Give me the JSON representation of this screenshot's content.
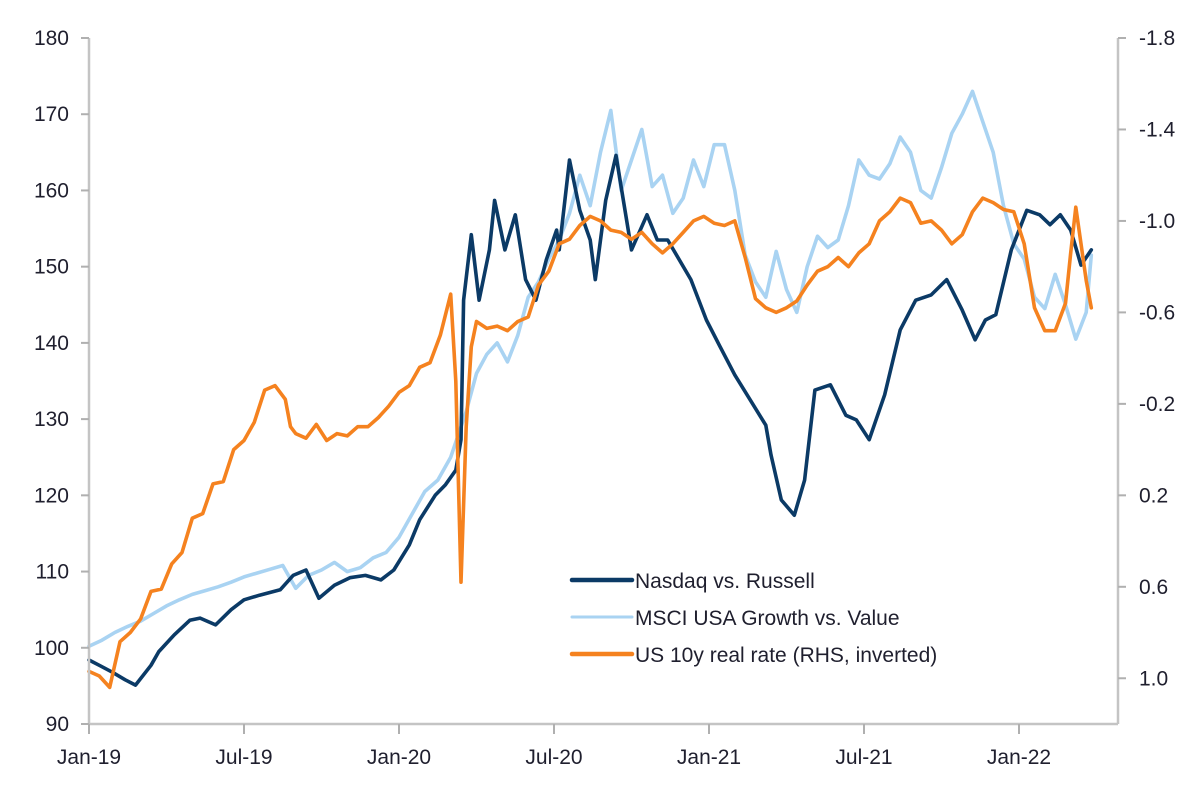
{
  "chart_data": {
    "type": "line",
    "title": "",
    "xlabel": "",
    "ylabel": "",
    "y2label": "",
    "grid": false,
    "legend_position": "bottom-right",
    "x_range": [
      "2019-01",
      "2022-04"
    ],
    "x_ticks": [
      "Jan-19",
      "Jul-19",
      "Jan-20",
      "Jul-20",
      "Jan-21",
      "Jul-21",
      "Jan-22"
    ],
    "x_tick_months": [
      0,
      6,
      12,
      18,
      24,
      30,
      36
    ],
    "x_end_month": 38.8,
    "ylim": [
      90,
      180
    ],
    "y_ticks": [
      90,
      100,
      110,
      120,
      130,
      140,
      150,
      160,
      170,
      180
    ],
    "y2lim": [
      1.2,
      -1.8
    ],
    "y2_inverted": true,
    "y2_ticks": [
      1.0,
      0.6,
      0.2,
      -0.2,
      -0.6,
      -1.0,
      -1.4,
      -1.8
    ],
    "y2_tick_labels": [
      "1.0",
      "0.6",
      "0.2",
      "-0.2",
      "-0.6",
      "-1.0",
      "-1.4",
      "-1.8"
    ],
    "series": [
      {
        "name": "Nasdaq vs. Russell",
        "axis": "left",
        "color": "#0b3a66",
        "x_months": [
          0,
          0.4,
          0.9,
          1.4,
          1.8,
          2.4,
          2.7,
          3.3,
          3.9,
          4.3,
          4.9,
          5.5,
          6.0,
          6.6,
          7.4,
          7.9,
          8.4,
          8.9,
          9.5,
          10.1,
          10.7,
          11.3,
          11.8,
          12.4,
          12.8,
          13.4,
          13.8,
          14.2,
          14.4,
          14.5,
          14.8,
          15.1,
          15.5,
          15.7,
          16.1,
          16.5,
          16.9,
          17.3,
          17.7,
          18.1,
          18.2,
          18.6,
          19.0,
          19.4,
          19.6,
          20.0,
          20.4,
          21.0,
          21.6,
          22.0,
          22.4,
          23.3,
          23.9,
          24.4,
          25.0,
          25.6,
          26.2,
          26.4,
          26.8,
          27.3,
          27.7,
          28.1,
          28.7,
          29.3,
          29.7,
          30.2,
          30.8,
          31.4,
          32.0,
          32.6,
          33.2,
          33.8,
          34.3,
          34.7,
          35.1,
          35.7,
          36.3,
          36.8,
          37.2,
          37.6,
          38.0,
          38.4,
          38.8
        ],
        "values": [
          98.4,
          97.7,
          96.8,
          95.8,
          95.1,
          97.7,
          99.5,
          101.7,
          103.6,
          103.9,
          103.0,
          105.0,
          106.3,
          106.9,
          107.6,
          109.5,
          110.2,
          106.5,
          108.2,
          109.2,
          109.5,
          108.9,
          110.2,
          113.5,
          116.8,
          120.0,
          121.4,
          123.3,
          127.3,
          145.6,
          154.2,
          145.6,
          152.2,
          158.7,
          152.2,
          156.8,
          148.3,
          145.6,
          150.9,
          154.8,
          152.2,
          164.0,
          157.4,
          153.5,
          148.3,
          158.7,
          164.6,
          152.2,
          156.8,
          153.5,
          153.5,
          148.3,
          143.0,
          139.7,
          135.8,
          132.5,
          129.2,
          125.3,
          119.4,
          117.4,
          122.0,
          133.8,
          134.5,
          130.5,
          129.9,
          127.3,
          133.2,
          141.7,
          145.6,
          146.3,
          148.3,
          144.3,
          140.4,
          143.0,
          143.7,
          152.2,
          157.4,
          156.8,
          155.5,
          156.8,
          154.8,
          150.2,
          152.2,
          147.0,
          145.6
        ]
      },
      {
        "name": "MSCI USA Growth vs. Value",
        "axis": "left",
        "color": "#a9d3f2",
        "x_months": [
          0,
          0.5,
          1.0,
          1.5,
          2.0,
          2.5,
          3.0,
          3.5,
          4.0,
          4.5,
          5.0,
          5.5,
          6.0,
          6.5,
          7.0,
          7.5,
          8.0,
          8.5,
          9.0,
          9.5,
          10.0,
          10.5,
          11.0,
          11.5,
          12.0,
          12.5,
          13.0,
          13.5,
          14.0,
          14.3,
          14.6,
          15.0,
          15.4,
          15.8,
          16.2,
          16.6,
          17.0,
          17.4,
          17.8,
          18.2,
          18.6,
          19.0,
          19.4,
          19.8,
          20.2,
          20.6,
          21.0,
          21.4,
          21.8,
          22.2,
          22.6,
          23.0,
          23.4,
          23.8,
          24.2,
          24.6,
          25.0,
          25.4,
          25.8,
          26.2,
          26.6,
          27.0,
          27.4,
          27.8,
          28.2,
          28.6,
          29.0,
          29.4,
          29.8,
          30.2,
          30.6,
          31.0,
          31.4,
          31.8,
          32.2,
          32.6,
          33.0,
          33.4,
          33.8,
          34.2,
          34.6,
          35.0,
          35.4,
          35.8,
          36.2,
          36.6,
          37.0,
          37.4,
          37.8,
          38.2,
          38.6,
          38.8
        ],
        "values": [
          100.2,
          101.0,
          102.0,
          102.8,
          103.5,
          104.5,
          105.5,
          106.3,
          107.0,
          107.5,
          108.0,
          108.6,
          109.3,
          109.8,
          110.3,
          110.8,
          107.8,
          109.5,
          110.2,
          111.2,
          110.0,
          110.5,
          111.8,
          112.5,
          114.5,
          117.5,
          120.5,
          122.0,
          125.0,
          128.0,
          131.0,
          136.0,
          138.5,
          140.0,
          137.5,
          141.0,
          146.0,
          148.0,
          151.0,
          153.5,
          157.0,
          162.0,
          158.0,
          165.0,
          170.5,
          160.0,
          164.0,
          168.0,
          160.5,
          162.0,
          157.0,
          159.0,
          164.0,
          160.5,
          166.0,
          166.0,
          160.0,
          151.5,
          148.0,
          146.0,
          152.0,
          147.0,
          144.0,
          150.0,
          154.0,
          152.5,
          153.5,
          158.0,
          164.0,
          162.0,
          161.5,
          163.5,
          167.0,
          165.0,
          160.0,
          159.0,
          163.0,
          167.5,
          170.0,
          173.0,
          169.0,
          165.0,
          158.0,
          153.0,
          151.0,
          146.0,
          144.5,
          149.0,
          145.0,
          140.5,
          144.0,
          151.5
        ]
      },
      {
        "name": "US 10y real rate (RHS, inverted)",
        "axis": "right",
        "color": "#f5821f",
        "x_months": [
          0,
          0.4,
          0.8,
          1.2,
          1.6,
          2.0,
          2.4,
          2.8,
          3.2,
          3.6,
          4.0,
          4.4,
          4.8,
          5.2,
          5.6,
          6.0,
          6.4,
          6.8,
          7.2,
          7.6,
          7.8,
          8.0,
          8.4,
          8.8,
          9.2,
          9.6,
          10.0,
          10.4,
          10.8,
          11.2,
          11.6,
          12.0,
          12.4,
          12.8,
          13.2,
          13.6,
          14.0,
          14.2,
          14.4,
          14.6,
          14.8,
          15.0,
          15.4,
          15.8,
          16.2,
          16.6,
          17.0,
          17.4,
          17.8,
          18.2,
          18.6,
          19.0,
          19.4,
          19.8,
          20.2,
          20.6,
          21.0,
          21.4,
          21.8,
          22.2,
          22.6,
          23.0,
          23.4,
          23.8,
          24.2,
          24.6,
          25.0,
          25.4,
          25.8,
          26.2,
          26.6,
          27.0,
          27.4,
          27.8,
          28.2,
          28.6,
          29.0,
          29.4,
          29.8,
          30.2,
          30.6,
          31.0,
          31.4,
          31.8,
          32.2,
          32.6,
          33.0,
          33.4,
          33.8,
          34.2,
          34.6,
          35.0,
          35.4,
          35.8,
          36.2,
          36.6,
          37.0,
          37.4,
          37.8,
          38.0,
          38.2,
          38.4,
          38.6,
          38.8
        ],
        "values": [
          0.97,
          0.99,
          1.04,
          0.84,
          0.8,
          0.74,
          0.62,
          0.61,
          0.5,
          0.45,
          0.3,
          0.28,
          0.15,
          0.14,
          0.0,
          -0.04,
          -0.12,
          -0.26,
          -0.28,
          -0.22,
          -0.1,
          -0.07,
          -0.05,
          -0.11,
          -0.04,
          -0.07,
          -0.06,
          -0.1,
          -0.1,
          -0.14,
          -0.19,
          -0.25,
          -0.28,
          -0.36,
          -0.38,
          -0.5,
          -0.68,
          -0.3,
          0.58,
          -0.1,
          -0.45,
          -0.56,
          -0.53,
          -0.54,
          -0.52,
          -0.56,
          -0.58,
          -0.72,
          -0.78,
          -0.9,
          -0.92,
          -0.98,
          -1.02,
          -1.0,
          -0.96,
          -0.95,
          -0.92,
          -0.95,
          -0.9,
          -0.86,
          -0.9,
          -0.95,
          -1.0,
          -1.02,
          -0.99,
          -0.98,
          -1.0,
          -0.84,
          -0.66,
          -0.62,
          -0.6,
          -0.62,
          -0.65,
          -0.72,
          -0.78,
          -0.8,
          -0.84,
          -0.8,
          -0.86,
          -0.9,
          -1.0,
          -1.04,
          -1.1,
          -1.08,
          -0.99,
          -1.0,
          -0.96,
          -0.9,
          -0.94,
          -1.04,
          -1.1,
          -1.08,
          -1.05,
          -1.04,
          -0.9,
          -0.62,
          -0.52,
          -0.52,
          -0.64,
          -0.86,
          -1.06,
          -0.9,
          -0.74,
          -0.62
        ]
      }
    ]
  }
}
